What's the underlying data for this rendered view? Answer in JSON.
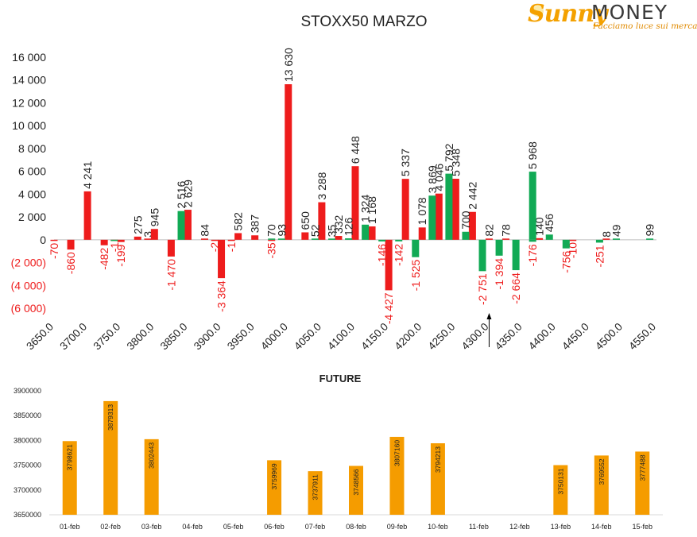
{
  "logo": {
    "brand_left": "Sunny",
    "brand_right": "MONEY",
    "tagline": "Facciamo luce sui mercati"
  },
  "colors": {
    "red": "#ee1c1c",
    "green": "#11aa55",
    "orange": "#f59c00",
    "axis": "#bfbfbf",
    "text": "#222222"
  },
  "chart_data": [
    {
      "type": "bar",
      "title": "STOXX50 MARZO",
      "ylim": [
        -6000,
        16000
      ],
      "y_ticks": [
        16000,
        14000,
        12000,
        10000,
        8000,
        6000,
        4000,
        2000,
        0,
        -2000,
        -4000,
        -6000
      ],
      "y_tick_labels": [
        "16 000",
        "14 000",
        "12 000",
        "10 000",
        "8 000",
        "6 000",
        "4 000",
        "2 000",
        "0",
        "(2 000)",
        "(4 000)",
        "(6 000)"
      ],
      "x_tick_labels": [
        "3650.0",
        "3700.0",
        "3750.0",
        "3800.0",
        "3850.0",
        "3900.0",
        "3950.0",
        "4000.0",
        "4050.0",
        "4100.0",
        "4150.0",
        "4200.0",
        "4250.0",
        "4300.0",
        "4350.0",
        "4400.0",
        "4450.0",
        "4500.0",
        "4550.0"
      ],
      "x_range": [
        3650,
        4550
      ],
      "marker_strike": 4300,
      "series": [
        {
          "color": "red",
          "points": [
            {
              "x": 3650,
              "y": -70,
              "label": "-70"
            },
            {
              "x": 3675,
              "y": -860,
              "label": "-860"
            },
            {
              "x": 3700,
              "y": 4241,
              "label": "4 241"
            },
            {
              "x": 3725,
              "y": -482,
              "label": "-482"
            },
            {
              "x": 3740,
              "y": -1,
              "label": "-1"
            },
            {
              "x": 3750,
              "y": -199,
              "label": "-199"
            },
            {
              "x": 3775,
              "y": 275,
              "label": "275"
            },
            {
              "x": 3790,
              "y": 3,
              "label": "3"
            },
            {
              "x": 3800,
              "y": 945,
              "label": "945"
            },
            {
              "x": 3825,
              "y": -1470,
              "label": "-1 470"
            },
            {
              "x": 3850,
              "y": 2629,
              "label": "2 629"
            },
            {
              "x": 3875,
              "y": 84,
              "label": "84"
            },
            {
              "x": 3890,
              "y": -2,
              "label": "-2"
            },
            {
              "x": 3900,
              "y": -3364,
              "label": "-3 364"
            },
            {
              "x": 3915,
              "y": -1,
              "label": "-1"
            },
            {
              "x": 3925,
              "y": 582,
              "label": "582"
            },
            {
              "x": 3950,
              "y": 387,
              "label": "387"
            },
            {
              "x": 3975,
              "y": -35,
              "label": "-35"
            },
            {
              "x": 4000,
              "y": 13630,
              "label": "13 630"
            },
            {
              "x": 4025,
              "y": 650,
              "label": "650"
            },
            {
              "x": 4050,
              "y": 3288,
              "label": "3 288"
            },
            {
              "x": 4075,
              "y": 332,
              "label": "332"
            },
            {
              "x": 4100,
              "y": 6448,
              "label": "6 448"
            },
            {
              "x": 4125,
              "y": 1168,
              "label": "1 168"
            },
            {
              "x": 4150,
              "y": -4427,
              "label": "-4 427"
            },
            {
              "x": 4175,
              "y": 5337,
              "label": "5 337"
            },
            {
              "x": 4200,
              "y": 1078,
              "label": "1 078"
            },
            {
              "x": 4225,
              "y": 4046,
              "label": "4 046"
            },
            {
              "x": 4250,
              "y": 5348,
              "label": "5 348"
            },
            {
              "x": 4275,
              "y": 2442,
              "label": "2 442"
            },
            {
              "x": 4300,
              "y": 82,
              "label": "82"
            },
            {
              "x": 4325,
              "y": 78,
              "label": "78"
            },
            {
              "x": 4375,
              "y": 140,
              "label": "140"
            },
            {
              "x": 4425,
              "y": -10,
              "label": "-10"
            },
            {
              "x": 4475,
              "y": 8,
              "label": "8"
            }
          ]
        },
        {
          "color": "green",
          "points": [
            {
              "x": 3740,
              "y": -1,
              "label": ""
            },
            {
              "x": 3840,
              "y": 2516,
              "label": "2 516"
            },
            {
              "x": 3975,
              "y": 70,
              "label": "70"
            },
            {
              "x": 3990,
              "y": 93,
              "label": "93"
            },
            {
              "x": 4040,
              "y": 52,
              "label": "52"
            },
            {
              "x": 4065,
              "y": 35,
              "label": "35"
            },
            {
              "x": 4090,
              "y": 126,
              "label": "126"
            },
            {
              "x": 4115,
              "y": 1324,
              "label": "1 324"
            },
            {
              "x": 4140,
              "y": -146,
              "label": "-146"
            },
            {
              "x": 4165,
              "y": -142,
              "label": "-142"
            },
            {
              "x": 4190,
              "y": -1525,
              "label": "-1 525"
            },
            {
              "x": 4215,
              "y": 3869,
              "label": "3 869"
            },
            {
              "x": 4240,
              "y": 5792,
              "label": "5 792"
            },
            {
              "x": 4265,
              "y": 700,
              "label": "700"
            },
            {
              "x": 4290,
              "y": -2751,
              "label": "-2 751"
            },
            {
              "x": 4315,
              "y": -1394,
              "label": "-1 394"
            },
            {
              "x": 4340,
              "y": -2664,
              "label": "-2 664"
            },
            {
              "x": 4365,
              "y": 5968,
              "label": "5 968"
            },
            {
              "x": 4365,
              "y": -176,
              "label": "-176"
            },
            {
              "x": 4390,
              "y": 456,
              "label": "456"
            },
            {
              "x": 4415,
              "y": -756,
              "label": "-756"
            },
            {
              "x": 4465,
              "y": -251,
              "label": "-251"
            },
            {
              "x": 4490,
              "y": 49,
              "label": "49"
            },
            {
              "x": 4540,
              "y": 99,
              "label": "99"
            }
          ]
        }
      ]
    },
    {
      "type": "bar",
      "title": "FUTURE",
      "ylim": [
        3650000,
        3900000
      ],
      "y_ticks": [
        3900000,
        3850000,
        3800000,
        3750000,
        3700000,
        3650000
      ],
      "y_tick_labels": [
        "3900000",
        "3850000",
        "3800000",
        "3750000",
        "3700000",
        "3650000"
      ],
      "categories": [
        "01-feb",
        "02-feb",
        "03-feb",
        "04-feb",
        "05-feb",
        "06-feb",
        "07-feb",
        "08-feb",
        "09-feb",
        "10-feb",
        "11-feb",
        "12-feb",
        "13-feb",
        "14-feb",
        "15-feb"
      ],
      "values": [
        3798621,
        3879313,
        3802443,
        null,
        null,
        3759969,
        3737911,
        3748566,
        3807160,
        3794213,
        null,
        null,
        3750131,
        3769552,
        3777488
      ],
      "value_labels": [
        "3798621",
        "3879313",
        "3802443",
        "",
        "",
        "3759969",
        "3737911",
        "3748566",
        "3807160",
        "3794213",
        "",
        "",
        "3750131",
        "3769552",
        "3777488"
      ]
    }
  ]
}
